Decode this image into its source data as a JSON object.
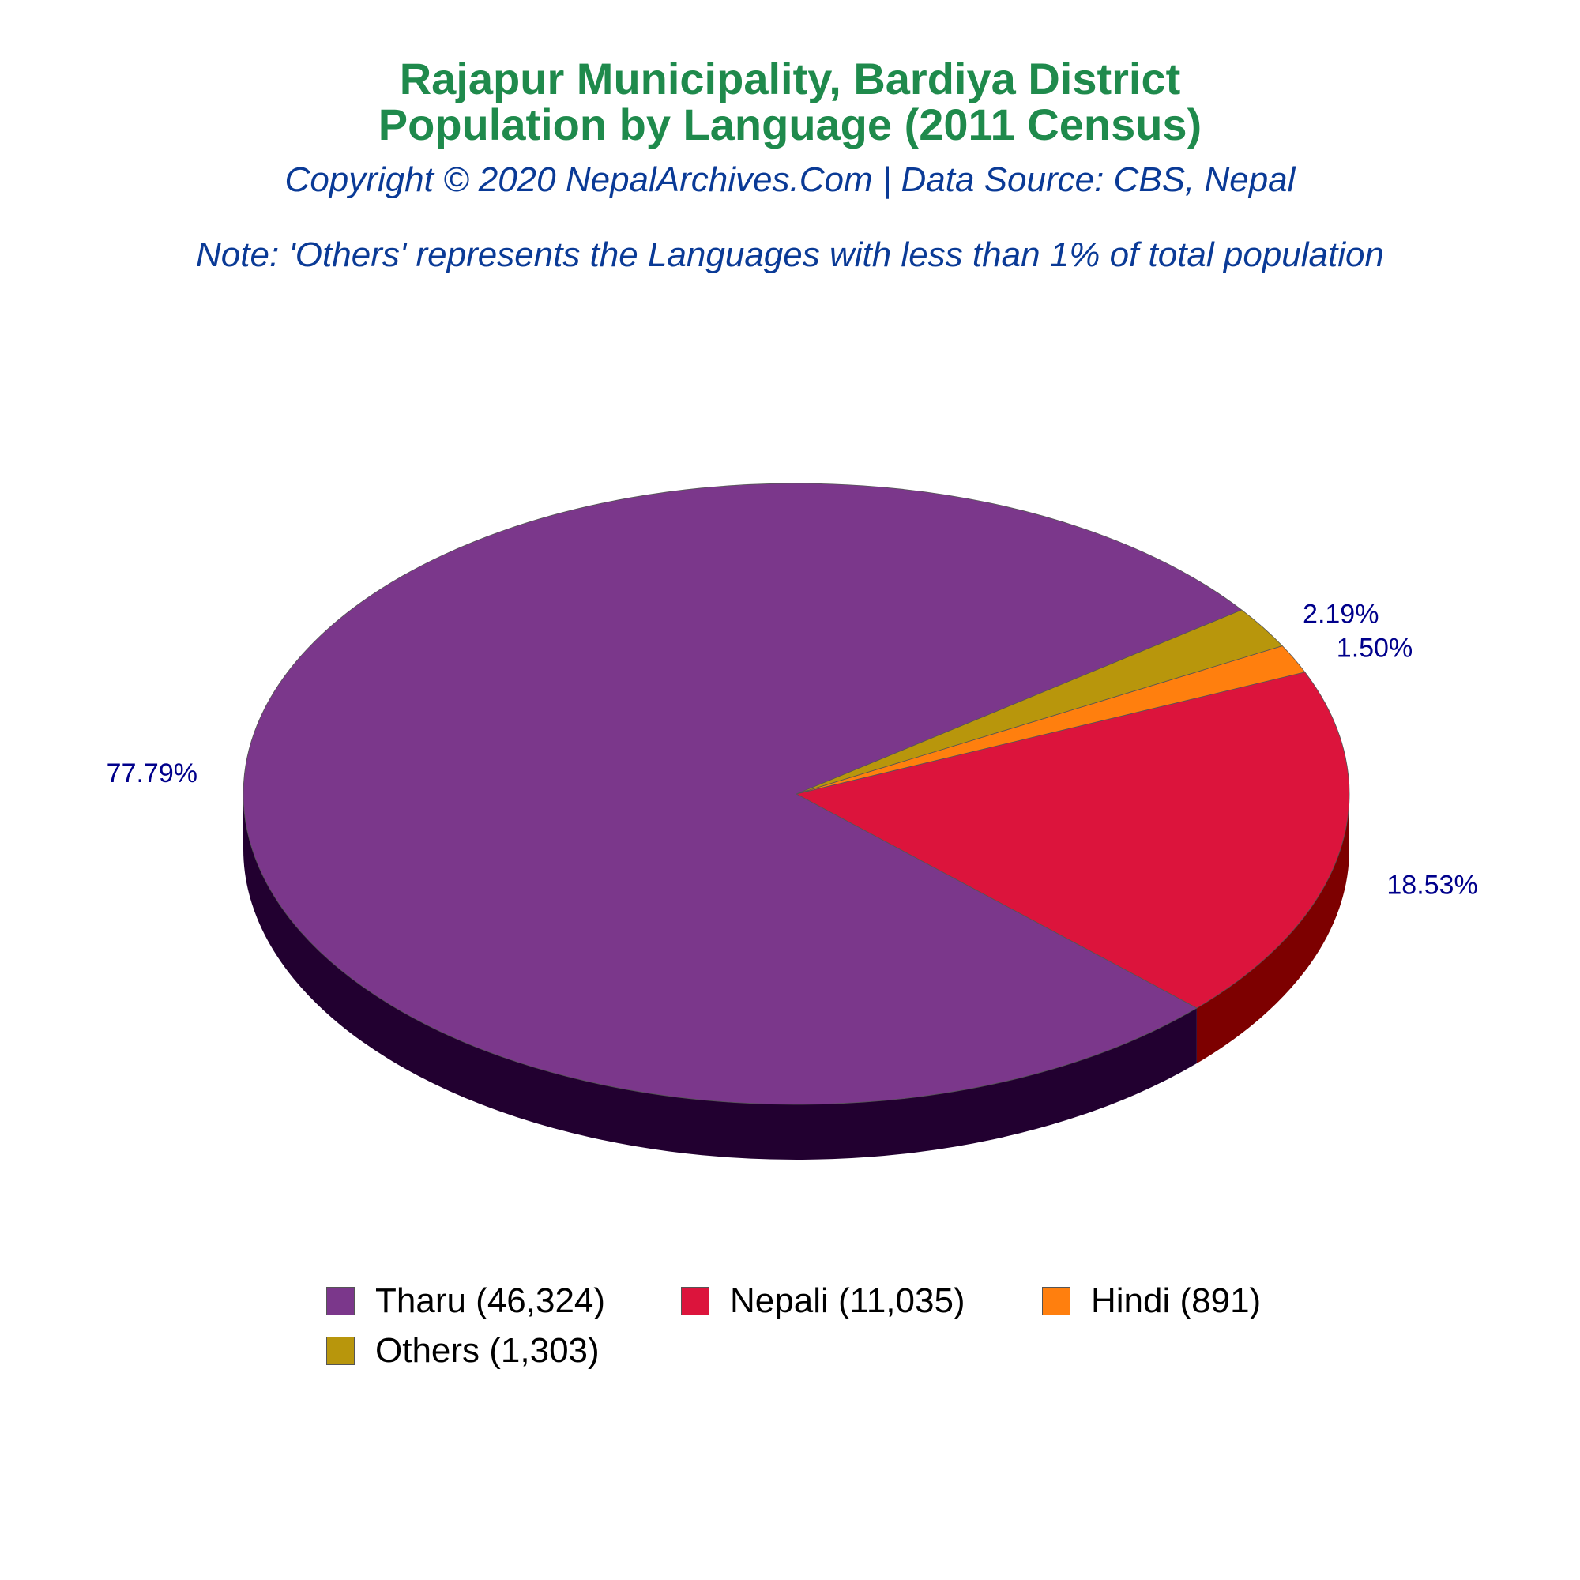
{
  "header": {
    "title_line1": "Rajapur Municipality, Bardiya District",
    "title_line2": "Population by Language (2011 Census)",
    "copyright": "Copyright © 2020 NepalArchives.Com | Data Source: CBS, Nepal",
    "note": "Note: 'Others' represents the Languages with less than 1% of total population"
  },
  "chart_data": {
    "type": "pie",
    "style": "3d",
    "slices": [
      {
        "label": "Tharu",
        "value": 46324,
        "percent_label": "77.79%",
        "legend": "Tharu (46,324)",
        "color": "#7b378b",
        "side_color": "#220030"
      },
      {
        "label": "Nepali",
        "value": 11035,
        "percent_label": "18.53%",
        "legend": "Nepali (11,035)",
        "color": "#dc143c",
        "side_color": "#7d0000"
      },
      {
        "label": "Hindi",
        "value": 891,
        "percent_label": "1.50%",
        "legend": "Hindi (891)",
        "color": "#ff7f0e",
        "side_color": "#8a3c00"
      },
      {
        "label": "Others",
        "value": 1303,
        "percent_label": "2.19%",
        "legend": "Others (1,303)",
        "color": "#b8960c",
        "side_color": "#5e4a00"
      }
    ],
    "label_color": "#00008b",
    "legend_position": "bottom"
  }
}
